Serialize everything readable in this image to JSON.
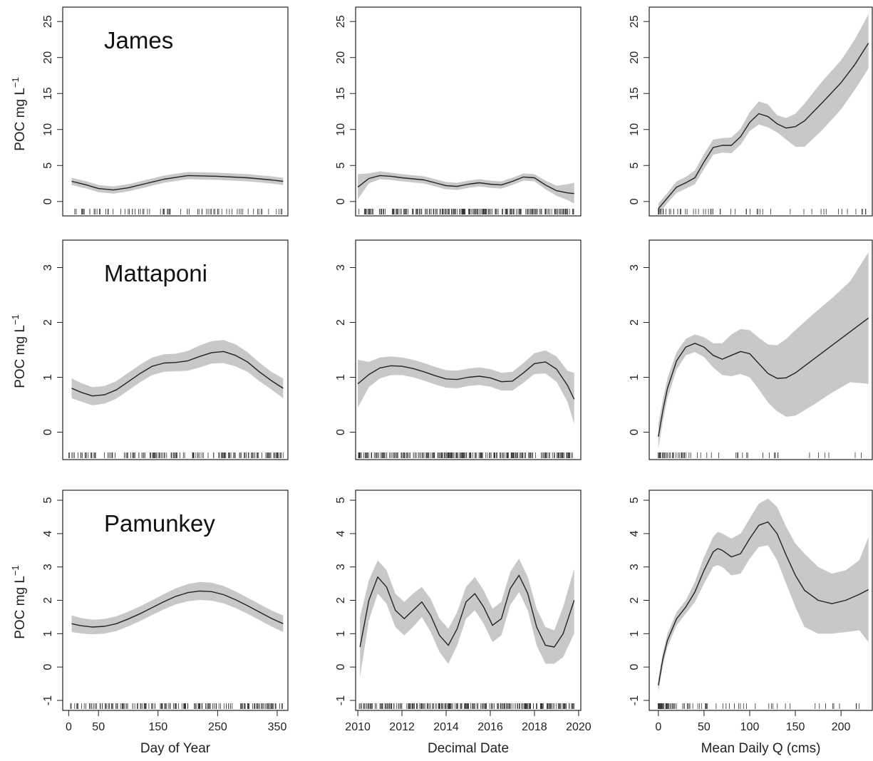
{
  "y_axis_label": "POC mg L",
  "y_axis_label_superscript": "−1",
  "colors": {
    "band": "#c8c8c8",
    "line": "#222222",
    "frame": "#222222"
  },
  "chart_data": [
    {
      "id": "james-doy",
      "type": "line",
      "row": 0,
      "col": 0,
      "title": "James",
      "xlim": [
        -10,
        368
      ],
      "ylim": [
        -2,
        27
      ],
      "xticks": [],
      "xtick_labels": [],
      "yticks": [
        0,
        5,
        10,
        15,
        20,
        25
      ],
      "x": [
        5,
        30,
        50,
        75,
        100,
        130,
        160,
        200,
        250,
        300,
        340,
        360
      ],
      "y": [
        2.8,
        2.3,
        1.8,
        1.6,
        1.9,
        2.5,
        3.1,
        3.6,
        3.5,
        3.3,
        3.0,
        2.8
      ],
      "upper": [
        3.3,
        2.8,
        2.3,
        2.1,
        2.4,
        3.0,
        3.6,
        4.1,
        4.0,
        3.8,
        3.5,
        3.3
      ],
      "lower": [
        2.3,
        1.8,
        1.3,
        1.1,
        1.4,
        2.0,
        2.6,
        3.1,
        3.0,
        2.8,
        2.5,
        2.3
      ],
      "rug_start": 0,
      "rug_end": 360,
      "rug_count": 80
    },
    {
      "id": "james-date",
      "type": "line",
      "row": 0,
      "col": 1,
      "title": "",
      "xlim": [
        2009.9,
        2020.1
      ],
      "ylim": [
        -2,
        27
      ],
      "xticks": [],
      "xtick_labels": [],
      "yticks": [
        0,
        5,
        10,
        15,
        20,
        25
      ],
      "x": [
        2010,
        2010.5,
        2011,
        2011.5,
        2012,
        2013,
        2013.5,
        2014,
        2014.5,
        2015,
        2015.5,
        2016,
        2016.5,
        2017,
        2017.5,
        2018,
        2018.5,
        2019,
        2019.5,
        2019.8
      ],
      "y": [
        2.0,
        3.2,
        3.6,
        3.5,
        3.3,
        3.0,
        2.6,
        2.2,
        2.1,
        2.4,
        2.6,
        2.4,
        2.3,
        2.8,
        3.4,
        3.3,
        2.3,
        1.5,
        1.2,
        1.1
      ],
      "upper": [
        3.8,
        3.9,
        4.2,
        4.0,
        3.8,
        3.5,
        3.1,
        2.7,
        2.6,
        2.9,
        3.1,
        2.9,
        2.8,
        3.3,
        3.9,
        3.8,
        2.9,
        2.2,
        2.4,
        2.6
      ],
      "lower": [
        0.3,
        2.5,
        3.1,
        3.0,
        2.8,
        2.5,
        2.1,
        1.7,
        1.6,
        1.9,
        2.1,
        1.9,
        1.8,
        2.3,
        2.9,
        2.8,
        1.7,
        0.8,
        0.2,
        -0.3
      ],
      "rug_start": 2010,
      "rug_end": 2019.8,
      "rug_count": 220
    },
    {
      "id": "james-q",
      "type": "line",
      "row": 0,
      "col": 2,
      "title": "",
      "xlim": [
        -10,
        235
      ],
      "ylim": [
        -2,
        27
      ],
      "xticks": [],
      "xtick_labels": [],
      "yticks": [
        0,
        5,
        10,
        15,
        20,
        25
      ],
      "x": [
        0,
        10,
        20,
        30,
        40,
        50,
        60,
        70,
        80,
        90,
        100,
        110,
        120,
        130,
        140,
        150,
        160,
        180,
        200,
        215,
        230
      ],
      "y": [
        -1.0,
        0.5,
        2.0,
        2.6,
        3.3,
        5.5,
        7.5,
        7.8,
        7.8,
        9.0,
        11.0,
        12.2,
        11.8,
        10.8,
        10.2,
        10.4,
        11.2,
        13.8,
        16.5,
        19.0,
        22.0
      ],
      "upper": [
        -0.3,
        1.2,
        2.8,
        3.4,
        4.3,
        6.6,
        8.6,
        8.8,
        8.9,
        10.1,
        12.4,
        13.9,
        13.5,
        12.0,
        11.6,
        12.2,
        13.6,
        16.8,
        19.6,
        22.5,
        26.0
      ],
      "lower": [
        -1.8,
        -0.2,
        1.2,
        1.8,
        2.4,
        4.5,
        6.5,
        6.8,
        6.7,
        7.9,
        9.8,
        10.7,
        10.3,
        9.6,
        8.6,
        7.6,
        7.6,
        10.0,
        12.8,
        15.5,
        18.5
      ],
      "rug_start": 0,
      "rug_end": 230,
      "rug_count": 60
    },
    {
      "id": "mattaponi-doy",
      "type": "line",
      "row": 1,
      "col": 0,
      "title": "Mattaponi",
      "xlim": [
        -10,
        368
      ],
      "ylim": [
        -0.5,
        3.5
      ],
      "xticks": [],
      "xtick_labels": [],
      "yticks": [
        0,
        1,
        2,
        3
      ],
      "x": [
        5,
        20,
        40,
        60,
        80,
        100,
        120,
        140,
        160,
        180,
        200,
        220,
        240,
        260,
        280,
        300,
        320,
        340,
        360
      ],
      "y": [
        0.8,
        0.73,
        0.66,
        0.68,
        0.77,
        0.92,
        1.07,
        1.2,
        1.26,
        1.27,
        1.3,
        1.38,
        1.45,
        1.47,
        1.4,
        1.28,
        1.1,
        0.94,
        0.8
      ],
      "upper": [
        0.98,
        0.9,
        0.82,
        0.84,
        0.93,
        1.08,
        1.23,
        1.36,
        1.42,
        1.43,
        1.48,
        1.58,
        1.66,
        1.68,
        1.6,
        1.46,
        1.27,
        1.1,
        0.98
      ],
      "lower": [
        0.62,
        0.56,
        0.49,
        0.52,
        0.61,
        0.76,
        0.91,
        1.04,
        1.1,
        1.11,
        1.12,
        1.18,
        1.25,
        1.26,
        1.2,
        1.1,
        0.93,
        0.78,
        0.62
      ],
      "rug_start": 0,
      "rug_end": 360,
      "rug_count": 150
    },
    {
      "id": "mattaponi-date",
      "type": "line",
      "row": 1,
      "col": 1,
      "title": "",
      "xlim": [
        2009.9,
        2020.1
      ],
      "ylim": [
        -0.5,
        3.5
      ],
      "xticks": [],
      "xtick_labels": [],
      "yticks": [
        0,
        1,
        2,
        3
      ],
      "x": [
        2010,
        2010.5,
        2011,
        2011.5,
        2012,
        2012.5,
        2013,
        2013.5,
        2014,
        2014.5,
        2015,
        2015.5,
        2016,
        2016.5,
        2017,
        2017.5,
        2018,
        2018.5,
        2019,
        2019.5,
        2019.8
      ],
      "y": [
        0.88,
        1.05,
        1.17,
        1.21,
        1.2,
        1.16,
        1.1,
        1.03,
        0.97,
        0.96,
        1.0,
        1.02,
        0.99,
        0.92,
        0.93,
        1.08,
        1.25,
        1.28,
        1.15,
        0.85,
        0.6
      ],
      "upper": [
        1.32,
        1.28,
        1.36,
        1.38,
        1.36,
        1.32,
        1.26,
        1.19,
        1.13,
        1.12,
        1.16,
        1.18,
        1.15,
        1.08,
        1.1,
        1.26,
        1.44,
        1.49,
        1.38,
        1.12,
        1.08
      ],
      "lower": [
        0.45,
        0.82,
        0.98,
        1.04,
        1.04,
        1.0,
        0.94,
        0.87,
        0.81,
        0.8,
        0.84,
        0.86,
        0.83,
        0.76,
        0.76,
        0.9,
        1.06,
        1.07,
        0.92,
        0.55,
        0.15
      ],
      "rug_start": 2010,
      "rug_end": 2019.8,
      "rug_count": 260
    },
    {
      "id": "mattaponi-q",
      "type": "line",
      "row": 1,
      "col": 2,
      "title": "",
      "xlim": [
        -10,
        235
      ],
      "ylim": [
        -0.5,
        3.5
      ],
      "xticks": [],
      "xtick_labels": [],
      "yticks": [
        0,
        1,
        2,
        3
      ],
      "x": [
        0,
        5,
        10,
        20,
        30,
        40,
        50,
        60,
        70,
        80,
        90,
        100,
        110,
        120,
        130,
        140,
        150,
        170,
        190,
        210,
        230
      ],
      "y": [
        -0.08,
        0.4,
        0.8,
        1.3,
        1.55,
        1.62,
        1.55,
        1.4,
        1.33,
        1.4,
        1.47,
        1.43,
        1.25,
        1.07,
        0.98,
        0.99,
        1.08,
        1.33,
        1.58,
        1.83,
        2.08
      ],
      "upper": [
        0.15,
        0.6,
        0.98,
        1.46,
        1.7,
        1.78,
        1.73,
        1.62,
        1.62,
        1.78,
        1.88,
        1.86,
        1.72,
        1.6,
        1.58,
        1.7,
        1.86,
        2.16,
        2.44,
        2.75,
        3.28
      ],
      "lower": [
        -0.3,
        0.2,
        0.62,
        1.14,
        1.4,
        1.46,
        1.37,
        1.18,
        1.04,
        1.02,
        1.06,
        1.0,
        0.78,
        0.54,
        0.38,
        0.28,
        0.3,
        0.5,
        0.72,
        0.91,
        0.88
      ],
      "rug_start": 0,
      "rug_end": 230,
      "rug_count": 70
    },
    {
      "id": "pamunkey-doy",
      "type": "line",
      "row": 2,
      "col": 0,
      "title": "Pamunkey",
      "xlim": [
        -10,
        368
      ],
      "ylim": [
        -1.3,
        5.3
      ],
      "xticks": [
        0,
        50,
        150,
        250,
        350
      ],
      "xtick_labels": [
        "0",
        "50",
        "150",
        "250",
        "350"
      ],
      "yticks": [
        -1,
        0,
        1,
        2,
        3,
        4,
        5
      ],
      "xlabel": "Day of Year",
      "x": [
        5,
        20,
        40,
        60,
        80,
        100,
        120,
        140,
        160,
        180,
        200,
        220,
        240,
        260,
        280,
        300,
        320,
        340,
        360
      ],
      "y": [
        1.3,
        1.24,
        1.2,
        1.22,
        1.3,
        1.44,
        1.6,
        1.78,
        1.96,
        2.12,
        2.23,
        2.28,
        2.26,
        2.17,
        2.02,
        1.84,
        1.65,
        1.46,
        1.3
      ],
      "upper": [
        1.55,
        1.47,
        1.42,
        1.44,
        1.52,
        1.66,
        1.82,
        2.0,
        2.19,
        2.36,
        2.49,
        2.55,
        2.53,
        2.43,
        2.27,
        2.08,
        1.89,
        1.7,
        1.55
      ],
      "lower": [
        1.05,
        1.01,
        0.98,
        1.0,
        1.08,
        1.22,
        1.38,
        1.56,
        1.73,
        1.88,
        1.97,
        2.01,
        1.99,
        1.91,
        1.77,
        1.6,
        1.41,
        1.22,
        1.05
      ],
      "rug_start": 0,
      "rug_end": 360,
      "rug_count": 170
    },
    {
      "id": "pamunkey-date",
      "type": "line",
      "row": 2,
      "col": 1,
      "title": "",
      "xlim": [
        2009.9,
        2020.1
      ],
      "ylim": [
        -1.3,
        5.3
      ],
      "xticks": [
        2010,
        2012,
        2014,
        2016,
        2018,
        2020
      ],
      "xtick_labels": [
        "2010",
        "2012",
        "2014",
        "2016",
        "2018",
        "2020"
      ],
      "yticks": [
        -1,
        0,
        1,
        2,
        3,
        4,
        5
      ],
      "xlabel": "Decimal Date",
      "x": [
        2010.1,
        2010.5,
        2010.9,
        2011.3,
        2011.7,
        2012.1,
        2012.5,
        2012.9,
        2013.3,
        2013.7,
        2014.1,
        2014.5,
        2014.9,
        2015.3,
        2015.7,
        2016.1,
        2016.5,
        2016.9,
        2017.3,
        2017.7,
        2018.1,
        2018.5,
        2018.9,
        2019.3,
        2019.8
      ],
      "y": [
        0.6,
        2.0,
        2.7,
        2.4,
        1.7,
        1.45,
        1.7,
        1.95,
        1.55,
        0.95,
        0.65,
        1.15,
        1.95,
        2.2,
        1.8,
        1.25,
        1.45,
        2.35,
        2.75,
        2.2,
        1.2,
        0.65,
        0.6,
        1.0,
        2.0
      ],
      "upper": [
        1.5,
        2.6,
        3.2,
        2.9,
        2.2,
        1.95,
        2.2,
        2.4,
        2.05,
        1.45,
        1.15,
        1.65,
        2.4,
        2.7,
        2.3,
        1.75,
        1.95,
        2.85,
        3.25,
        2.7,
        1.75,
        1.2,
        1.1,
        1.8,
        2.95
      ],
      "lower": [
        -0.3,
        1.4,
        2.2,
        1.9,
        1.2,
        0.95,
        1.2,
        1.5,
        1.05,
        0.45,
        0.1,
        0.65,
        1.45,
        1.7,
        1.3,
        0.75,
        0.95,
        1.85,
        2.25,
        1.7,
        0.65,
        0.1,
        0.1,
        0.3,
        1.0
      ],
      "rug_start": 2010,
      "rug_end": 2019.8,
      "rug_count": 260
    },
    {
      "id": "pamunkey-q",
      "type": "line",
      "row": 2,
      "col": 2,
      "title": "",
      "xlim": [
        -10,
        235
      ],
      "ylim": [
        -1.3,
        5.3
      ],
      "xticks": [
        0,
        50,
        100,
        150,
        200
      ],
      "xtick_labels": [
        "0",
        "50",
        "100",
        "150",
        "200"
      ],
      "yticks": [
        -1,
        0,
        1,
        2,
        3,
        4,
        5
      ],
      "xlabel": "Mean Daily Q (cms)",
      "x": [
        0,
        5,
        10,
        20,
        30,
        40,
        50,
        60,
        65,
        70,
        80,
        90,
        100,
        110,
        120,
        130,
        140,
        150,
        160,
        175,
        190,
        205,
        220,
        230
      ],
      "y": [
        -0.55,
        0.25,
        0.8,
        1.45,
        1.8,
        2.25,
        2.9,
        3.45,
        3.55,
        3.5,
        3.3,
        3.4,
        3.85,
        4.25,
        4.35,
        4.0,
        3.35,
        2.75,
        2.3,
        2.0,
        1.9,
        2.0,
        2.18,
        2.32
      ],
      "upper": [
        -0.35,
        0.45,
        1.0,
        1.65,
        2.0,
        2.55,
        3.3,
        3.9,
        4.05,
        4.0,
        3.85,
        4.0,
        4.45,
        4.9,
        5.05,
        4.8,
        4.2,
        3.7,
        3.4,
        3.0,
        2.8,
        2.9,
        3.2,
        3.9
      ],
      "lower": [
        -0.75,
        0.05,
        0.6,
        1.25,
        1.6,
        1.95,
        2.5,
        3.0,
        3.05,
        3.0,
        2.75,
        2.8,
        3.25,
        3.6,
        3.65,
        3.2,
        2.5,
        1.8,
        1.2,
        1.0,
        1.0,
        1.05,
        1.1,
        0.75
      ],
      "rug_start": 0,
      "rug_end": 230,
      "rug_count": 90
    }
  ]
}
